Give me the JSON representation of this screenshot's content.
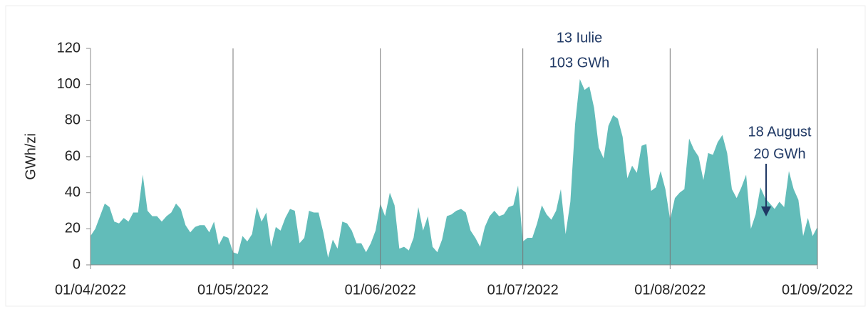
{
  "chart_data": {
    "type": "area",
    "y_label": "GWh/zi",
    "color": "#62bcb9",
    "xlim": [
      "2022-04-01",
      "2022-09-01"
    ],
    "xticks": [
      {
        "value": "2022-04-01",
        "label": "01/04/2022"
      },
      {
        "value": "2022-05-01",
        "label": "01/05/2022"
      },
      {
        "value": "2022-06-01",
        "label": "01/06/2022"
      },
      {
        "value": "2022-07-01",
        "label": "01/07/2022"
      },
      {
        "value": "2022-08-01",
        "label": "01/08/2022"
      },
      {
        "value": "2022-09-01",
        "label": "01/09/2022"
      }
    ],
    "ylim": [
      0,
      120
    ],
    "yticks": [
      0,
      20,
      40,
      60,
      80,
      100,
      120
    ],
    "grid": "x",
    "annotations": [
      {
        "lines": [
          "13 Iulie",
          "103 GWh"
        ]
      },
      {
        "lines": [
          "18 August",
          "20 GWh"
        ]
      }
    ],
    "x": [
      "2022-04-01",
      "2022-04-02",
      "2022-04-03",
      "2022-04-04",
      "2022-04-05",
      "2022-04-06",
      "2022-04-07",
      "2022-04-08",
      "2022-04-09",
      "2022-04-10",
      "2022-04-11",
      "2022-04-12",
      "2022-04-13",
      "2022-04-14",
      "2022-04-15",
      "2022-04-16",
      "2022-04-17",
      "2022-04-18",
      "2022-04-19",
      "2022-04-20",
      "2022-04-21",
      "2022-04-22",
      "2022-04-23",
      "2022-04-24",
      "2022-04-25",
      "2022-04-26",
      "2022-04-27",
      "2022-04-28",
      "2022-04-29",
      "2022-04-30",
      "2022-05-01",
      "2022-05-02",
      "2022-05-03",
      "2022-05-04",
      "2022-05-05",
      "2022-05-06",
      "2022-05-07",
      "2022-05-08",
      "2022-05-09",
      "2022-05-10",
      "2022-05-11",
      "2022-05-12",
      "2022-05-13",
      "2022-05-14",
      "2022-05-15",
      "2022-05-16",
      "2022-05-17",
      "2022-05-18",
      "2022-05-19",
      "2022-05-20",
      "2022-05-21",
      "2022-05-22",
      "2022-05-23",
      "2022-05-24",
      "2022-05-25",
      "2022-05-26",
      "2022-05-27",
      "2022-05-28",
      "2022-05-29",
      "2022-05-30",
      "2022-05-31",
      "2022-06-01",
      "2022-06-02",
      "2022-06-03",
      "2022-06-04",
      "2022-06-05",
      "2022-06-06",
      "2022-06-07",
      "2022-06-08",
      "2022-06-09",
      "2022-06-10",
      "2022-06-11",
      "2022-06-12",
      "2022-06-13",
      "2022-06-14",
      "2022-06-15",
      "2022-06-16",
      "2022-06-17",
      "2022-06-18",
      "2022-06-19",
      "2022-06-20",
      "2022-06-21",
      "2022-06-22",
      "2022-06-23",
      "2022-06-24",
      "2022-06-25",
      "2022-06-26",
      "2022-06-27",
      "2022-06-28",
      "2022-06-29",
      "2022-06-30",
      "2022-07-01",
      "2022-07-02",
      "2022-07-03",
      "2022-07-04",
      "2022-07-05",
      "2022-07-06",
      "2022-07-07",
      "2022-07-08",
      "2022-07-09",
      "2022-07-10",
      "2022-07-11",
      "2022-07-12",
      "2022-07-13",
      "2022-07-14",
      "2022-07-15",
      "2022-07-16",
      "2022-07-17",
      "2022-07-18",
      "2022-07-19",
      "2022-07-20",
      "2022-07-21",
      "2022-07-22",
      "2022-07-23",
      "2022-07-24",
      "2022-07-25",
      "2022-07-26",
      "2022-07-27",
      "2022-07-28",
      "2022-07-29",
      "2022-07-30",
      "2022-07-31",
      "2022-08-01",
      "2022-08-02",
      "2022-08-03",
      "2022-08-04",
      "2022-08-05",
      "2022-08-06",
      "2022-08-07",
      "2022-08-08",
      "2022-08-09",
      "2022-08-10",
      "2022-08-11",
      "2022-08-12",
      "2022-08-13",
      "2022-08-14",
      "2022-08-15",
      "2022-08-16",
      "2022-08-17",
      "2022-08-18",
      "2022-08-19",
      "2022-08-20",
      "2022-08-21",
      "2022-08-22",
      "2022-08-23",
      "2022-08-24",
      "2022-08-25",
      "2022-08-26",
      "2022-08-27",
      "2022-08-28",
      "2022-08-29",
      "2022-08-30",
      "2022-08-31",
      "2022-09-01"
    ],
    "values": [
      16,
      20,
      27,
      34,
      32,
      24,
      23,
      26,
      24,
      29,
      29,
      50,
      30,
      27,
      27,
      24,
      27,
      29,
      34,
      31,
      22,
      18,
      21,
      22,
      22,
      18,
      24,
      11,
      16,
      15,
      7,
      6,
      16,
      13,
      17,
      32,
      24,
      29,
      10,
      21,
      19,
      26,
      31,
      30,
      12,
      15,
      30,
      29,
      29,
      18,
      4,
      14,
      9,
      24,
      23,
      19,
      12,
      12,
      7,
      12,
      19,
      34,
      27,
      40,
      33,
      9,
      10,
      8,
      15,
      32,
      19,
      27,
      10,
      7,
      14,
      27,
      28,
      30,
      31,
      29,
      19,
      15,
      10,
      21,
      27,
      30,
      27,
      28,
      32,
      33,
      44,
      13,
      15,
      15,
      23,
      33,
      28,
      25,
      30,
      42,
      17,
      35,
      78,
      103,
      97,
      99,
      87,
      65,
      59,
      77,
      83,
      81,
      71,
      48,
      55,
      51,
      66,
      67,
      41,
      43,
      52,
      42,
      25,
      37,
      40,
      42,
      70,
      64,
      60,
      47,
      62,
      61,
      68,
      72,
      62,
      42,
      37,
      43,
      50,
      20,
      28,
      43,
      37,
      34,
      31,
      35,
      32,
      52,
      42,
      36,
      16,
      26,
      16,
      21
    ]
  }
}
